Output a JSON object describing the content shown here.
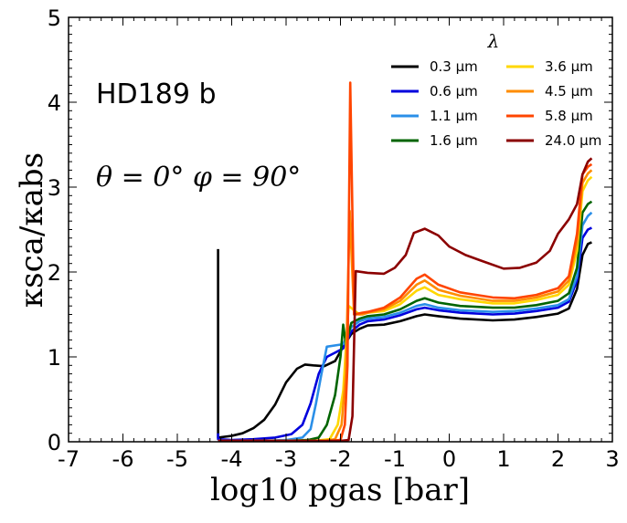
{
  "chart_data": {
    "type": "line",
    "title": "",
    "xlabel": "log10 pgas [bar]",
    "ylabel": "κsca/κabs",
    "xlim": [
      -7,
      3
    ],
    "ylim": [
      0,
      5
    ],
    "xticks": [
      "-7",
      "-6",
      "-5",
      "-4",
      "-3",
      "-2",
      "-1",
      "0",
      "1",
      "2",
      "3"
    ],
    "yticks": [
      "0",
      "1",
      "2",
      "3",
      "4",
      "5"
    ],
    "grid": false,
    "legend": {
      "title": "λ",
      "placement": "top-right",
      "columns": 2
    },
    "annotations": {
      "planet": "HD189 b",
      "angles": "θ = 0°  φ = 90°"
    },
    "series": [
      {
        "name": "0.3 μm",
        "color": "#000000",
        "points": [
          [
            -4.25,
            2.27
          ],
          [
            -4.25,
            0.05
          ],
          [
            -4.0,
            0.07
          ],
          [
            -3.8,
            0.1
          ],
          [
            -3.6,
            0.16
          ],
          [
            -3.4,
            0.26
          ],
          [
            -3.2,
            0.44
          ],
          [
            -3.0,
            0.7
          ],
          [
            -2.8,
            0.86
          ],
          [
            -2.65,
            0.91
          ],
          [
            -2.5,
            0.9
          ],
          [
            -2.3,
            0.89
          ],
          [
            -2.1,
            0.95
          ],
          [
            -1.95,
            1.12
          ],
          [
            -1.8,
            1.27
          ],
          [
            -1.65,
            1.33
          ],
          [
            -1.5,
            1.37
          ],
          [
            -1.2,
            1.38
          ],
          [
            -0.9,
            1.42
          ],
          [
            -0.6,
            1.48
          ],
          [
            -0.45,
            1.5
          ],
          [
            -0.2,
            1.48
          ],
          [
            0.2,
            1.45
          ],
          [
            0.8,
            1.43
          ],
          [
            1.2,
            1.44
          ],
          [
            1.6,
            1.47
          ],
          [
            2.0,
            1.51
          ],
          [
            2.2,
            1.57
          ],
          [
            2.35,
            1.8
          ],
          [
            2.45,
            2.2
          ],
          [
            2.55,
            2.33
          ],
          [
            2.62,
            2.35
          ]
        ]
      },
      {
        "name": "0.6 μm",
        "color": "#0000dd",
        "points": [
          [
            -4.25,
            0.1
          ],
          [
            -4.25,
            0.03
          ],
          [
            -4.0,
            0.02
          ],
          [
            -3.6,
            0.03
          ],
          [
            -3.2,
            0.05
          ],
          [
            -2.9,
            0.09
          ],
          [
            -2.7,
            0.2
          ],
          [
            -2.55,
            0.45
          ],
          [
            -2.4,
            0.8
          ],
          [
            -2.25,
            1.0
          ],
          [
            -2.1,
            1.05
          ],
          [
            -1.95,
            1.1
          ],
          [
            -1.8,
            1.3
          ],
          [
            -1.65,
            1.38
          ],
          [
            -1.5,
            1.42
          ],
          [
            -1.2,
            1.44
          ],
          [
            -0.9,
            1.49
          ],
          [
            -0.6,
            1.56
          ],
          [
            -0.45,
            1.58
          ],
          [
            -0.2,
            1.55
          ],
          [
            0.2,
            1.52
          ],
          [
            0.8,
            1.5
          ],
          [
            1.2,
            1.51
          ],
          [
            1.6,
            1.54
          ],
          [
            2.0,
            1.58
          ],
          [
            2.2,
            1.65
          ],
          [
            2.35,
            1.9
          ],
          [
            2.45,
            2.4
          ],
          [
            2.55,
            2.5
          ],
          [
            2.62,
            2.52
          ]
        ]
      },
      {
        "name": "1.1 μm",
        "color": "#2a8fe8",
        "points": [
          [
            -4.25,
            0.01
          ],
          [
            -3.5,
            0.01
          ],
          [
            -3.0,
            0.02
          ],
          [
            -2.7,
            0.05
          ],
          [
            -2.55,
            0.15
          ],
          [
            -2.45,
            0.45
          ],
          [
            -2.35,
            0.8
          ],
          [
            -2.25,
            1.12
          ],
          [
            -2.05,
            1.14
          ],
          [
            -1.95,
            1.15
          ],
          [
            -1.8,
            1.35
          ],
          [
            -1.65,
            1.42
          ],
          [
            -1.5,
            1.45
          ],
          [
            -1.2,
            1.47
          ],
          [
            -0.9,
            1.52
          ],
          [
            -0.6,
            1.6
          ],
          [
            -0.45,
            1.62
          ],
          [
            -0.2,
            1.58
          ],
          [
            0.2,
            1.55
          ],
          [
            0.8,
            1.53
          ],
          [
            1.2,
            1.54
          ],
          [
            1.6,
            1.57
          ],
          [
            2.0,
            1.61
          ],
          [
            2.2,
            1.68
          ],
          [
            2.35,
            1.95
          ],
          [
            2.45,
            2.55
          ],
          [
            2.55,
            2.66
          ],
          [
            2.62,
            2.7
          ]
        ]
      },
      {
        "name": "1.6 μm",
        "color": "#006400",
        "points": [
          [
            -4.25,
            0.01
          ],
          [
            -3.0,
            0.01
          ],
          [
            -2.6,
            0.02
          ],
          [
            -2.4,
            0.05
          ],
          [
            -2.25,
            0.2
          ],
          [
            -2.1,
            0.55
          ],
          [
            -2.0,
            1.0
          ],
          [
            -1.95,
            1.38
          ],
          [
            -1.9,
            1.15
          ],
          [
            -1.8,
            1.4
          ],
          [
            -1.65,
            1.45
          ],
          [
            -1.5,
            1.48
          ],
          [
            -1.2,
            1.5
          ],
          [
            -0.9,
            1.56
          ],
          [
            -0.6,
            1.66
          ],
          [
            -0.45,
            1.69
          ],
          [
            -0.2,
            1.64
          ],
          [
            0.2,
            1.6
          ],
          [
            0.8,
            1.58
          ],
          [
            1.2,
            1.58
          ],
          [
            1.6,
            1.61
          ],
          [
            2.0,
            1.66
          ],
          [
            2.2,
            1.75
          ],
          [
            2.35,
            2.05
          ],
          [
            2.45,
            2.7
          ],
          [
            2.55,
            2.8
          ],
          [
            2.62,
            2.83
          ]
        ]
      },
      {
        "name": "3.6 μm",
        "color": "#ffd700",
        "points": [
          [
            -4.25,
            0.01
          ],
          [
            -2.5,
            0.01
          ],
          [
            -2.2,
            0.03
          ],
          [
            -2.05,
            0.2
          ],
          [
            -1.95,
            0.6
          ],
          [
            -1.85,
            1.6
          ],
          [
            -1.75,
            1.55
          ],
          [
            -1.65,
            1.5
          ],
          [
            -1.5,
            1.52
          ],
          [
            -1.2,
            1.54
          ],
          [
            -0.9,
            1.62
          ],
          [
            -0.6,
            1.78
          ],
          [
            -0.45,
            1.82
          ],
          [
            -0.2,
            1.73
          ],
          [
            0.2,
            1.68
          ],
          [
            0.8,
            1.63
          ],
          [
            1.2,
            1.63
          ],
          [
            1.6,
            1.67
          ],
          [
            2.0,
            1.73
          ],
          [
            2.2,
            1.85
          ],
          [
            2.35,
            2.25
          ],
          [
            2.45,
            2.95
          ],
          [
            2.55,
            3.08
          ],
          [
            2.62,
            3.12
          ]
        ]
      },
      {
        "name": "4.5 μm",
        "color": "#ff8c00",
        "points": [
          [
            -4.25,
            0.01
          ],
          [
            -2.3,
            0.01
          ],
          [
            -2.1,
            0.03
          ],
          [
            -1.98,
            0.2
          ],
          [
            -1.9,
            0.8
          ],
          [
            -1.83,
            2.72
          ],
          [
            -1.75,
            1.5
          ],
          [
            -1.6,
            1.5
          ],
          [
            -1.5,
            1.52
          ],
          [
            -1.2,
            1.56
          ],
          [
            -0.9,
            1.66
          ],
          [
            -0.6,
            1.85
          ],
          [
            -0.45,
            1.9
          ],
          [
            -0.2,
            1.79
          ],
          [
            0.2,
            1.72
          ],
          [
            0.8,
            1.66
          ],
          [
            1.2,
            1.66
          ],
          [
            1.6,
            1.7
          ],
          [
            2.0,
            1.77
          ],
          [
            2.2,
            1.9
          ],
          [
            2.35,
            2.35
          ],
          [
            2.45,
            3.05
          ],
          [
            2.55,
            3.16
          ],
          [
            2.62,
            3.2
          ]
        ]
      },
      {
        "name": "5.8 μm",
        "color": "#ff4500",
        "points": [
          [
            -4.25,
            0.01
          ],
          [
            -2.2,
            0.01
          ],
          [
            -2.0,
            0.02
          ],
          [
            -1.92,
            0.2
          ],
          [
            -1.87,
            0.9
          ],
          [
            -1.82,
            4.23
          ],
          [
            -1.75,
            1.5
          ],
          [
            -1.6,
            1.52
          ],
          [
            -1.5,
            1.53
          ],
          [
            -1.2,
            1.58
          ],
          [
            -0.9,
            1.7
          ],
          [
            -0.6,
            1.92
          ],
          [
            -0.45,
            1.97
          ],
          [
            -0.2,
            1.85
          ],
          [
            0.2,
            1.76
          ],
          [
            0.8,
            1.7
          ],
          [
            1.2,
            1.69
          ],
          [
            1.6,
            1.73
          ],
          [
            2.0,
            1.81
          ],
          [
            2.2,
            1.95
          ],
          [
            2.35,
            2.45
          ],
          [
            2.45,
            3.15
          ],
          [
            2.55,
            3.24
          ],
          [
            2.62,
            3.27
          ]
        ]
      },
      {
        "name": "24.0 μm",
        "color": "#8b0000",
        "points": [
          [
            -4.25,
            0.01
          ],
          [
            -2.0,
            0.01
          ],
          [
            -1.85,
            0.02
          ],
          [
            -1.78,
            0.3
          ],
          [
            -1.72,
            2.01
          ],
          [
            -1.5,
            1.99
          ],
          [
            -1.2,
            1.98
          ],
          [
            -1.0,
            2.05
          ],
          [
            -0.8,
            2.2
          ],
          [
            -0.65,
            2.46
          ],
          [
            -0.45,
            2.51
          ],
          [
            -0.2,
            2.43
          ],
          [
            0.0,
            2.3
          ],
          [
            0.3,
            2.2
          ],
          [
            0.6,
            2.13
          ],
          [
            1.0,
            2.04
          ],
          [
            1.3,
            2.05
          ],
          [
            1.6,
            2.11
          ],
          [
            1.85,
            2.25
          ],
          [
            2.0,
            2.45
          ],
          [
            2.2,
            2.62
          ],
          [
            2.35,
            2.8
          ],
          [
            2.45,
            3.15
          ],
          [
            2.55,
            3.3
          ],
          [
            2.62,
            3.34
          ]
        ]
      }
    ]
  }
}
